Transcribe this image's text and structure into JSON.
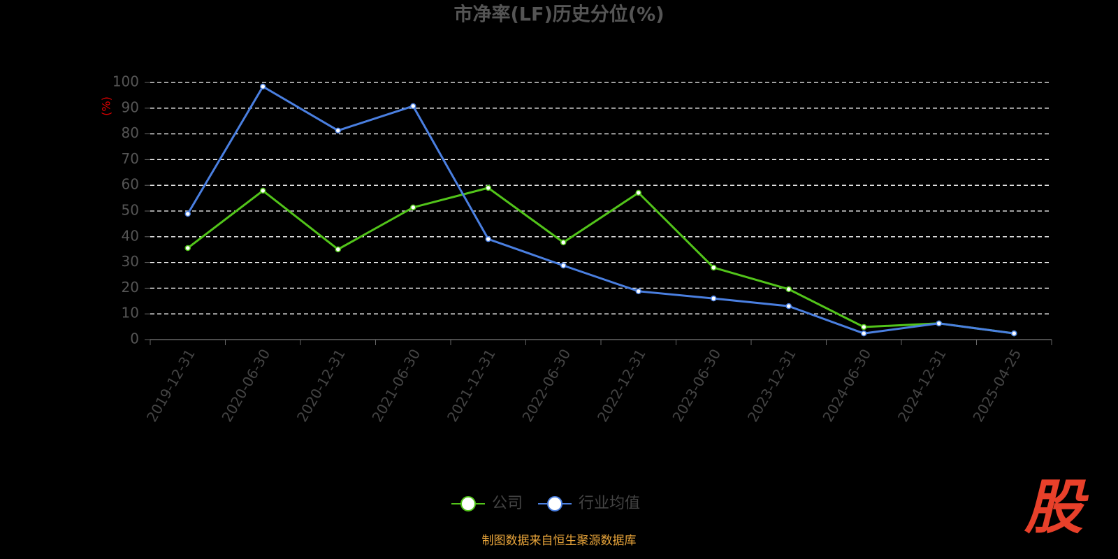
{
  "chart_data": {
    "type": "line",
    "title": "市净率(LF)历史分位(%)",
    "y_axis_label": "(%)",
    "categories": [
      "2019-12-31",
      "2020-06-30",
      "2020-12-31",
      "2021-06-30",
      "2021-12-31",
      "2022-06-30",
      "2022-12-31",
      "2023-06-30",
      "2023-12-31",
      "2024-06-30",
      "2024-12-31",
      "2025-04-25"
    ],
    "series": [
      {
        "name": "公司",
        "color": "#52c41a",
        "values": [
          35.6,
          57.9,
          35.1,
          51.4,
          59.0,
          37.8,
          57.1,
          28.0,
          19.6,
          4.9,
          6.3,
          2.4
        ]
      },
      {
        "name": "行业均值",
        "color": "#4a7fe0",
        "values": [
          48.9,
          98.4,
          81.3,
          90.8,
          39.1,
          28.8,
          18.8,
          16.0,
          13.0,
          2.4,
          6.3,
          2.4
        ]
      }
    ],
    "ylim": [
      0,
      100
    ],
    "yticks": [
      0,
      10,
      20,
      30,
      40,
      50,
      60,
      70,
      80,
      90,
      100
    ],
    "grid": true,
    "source": "制图数据来自恒生聚源数据库",
    "watermark": "股"
  }
}
